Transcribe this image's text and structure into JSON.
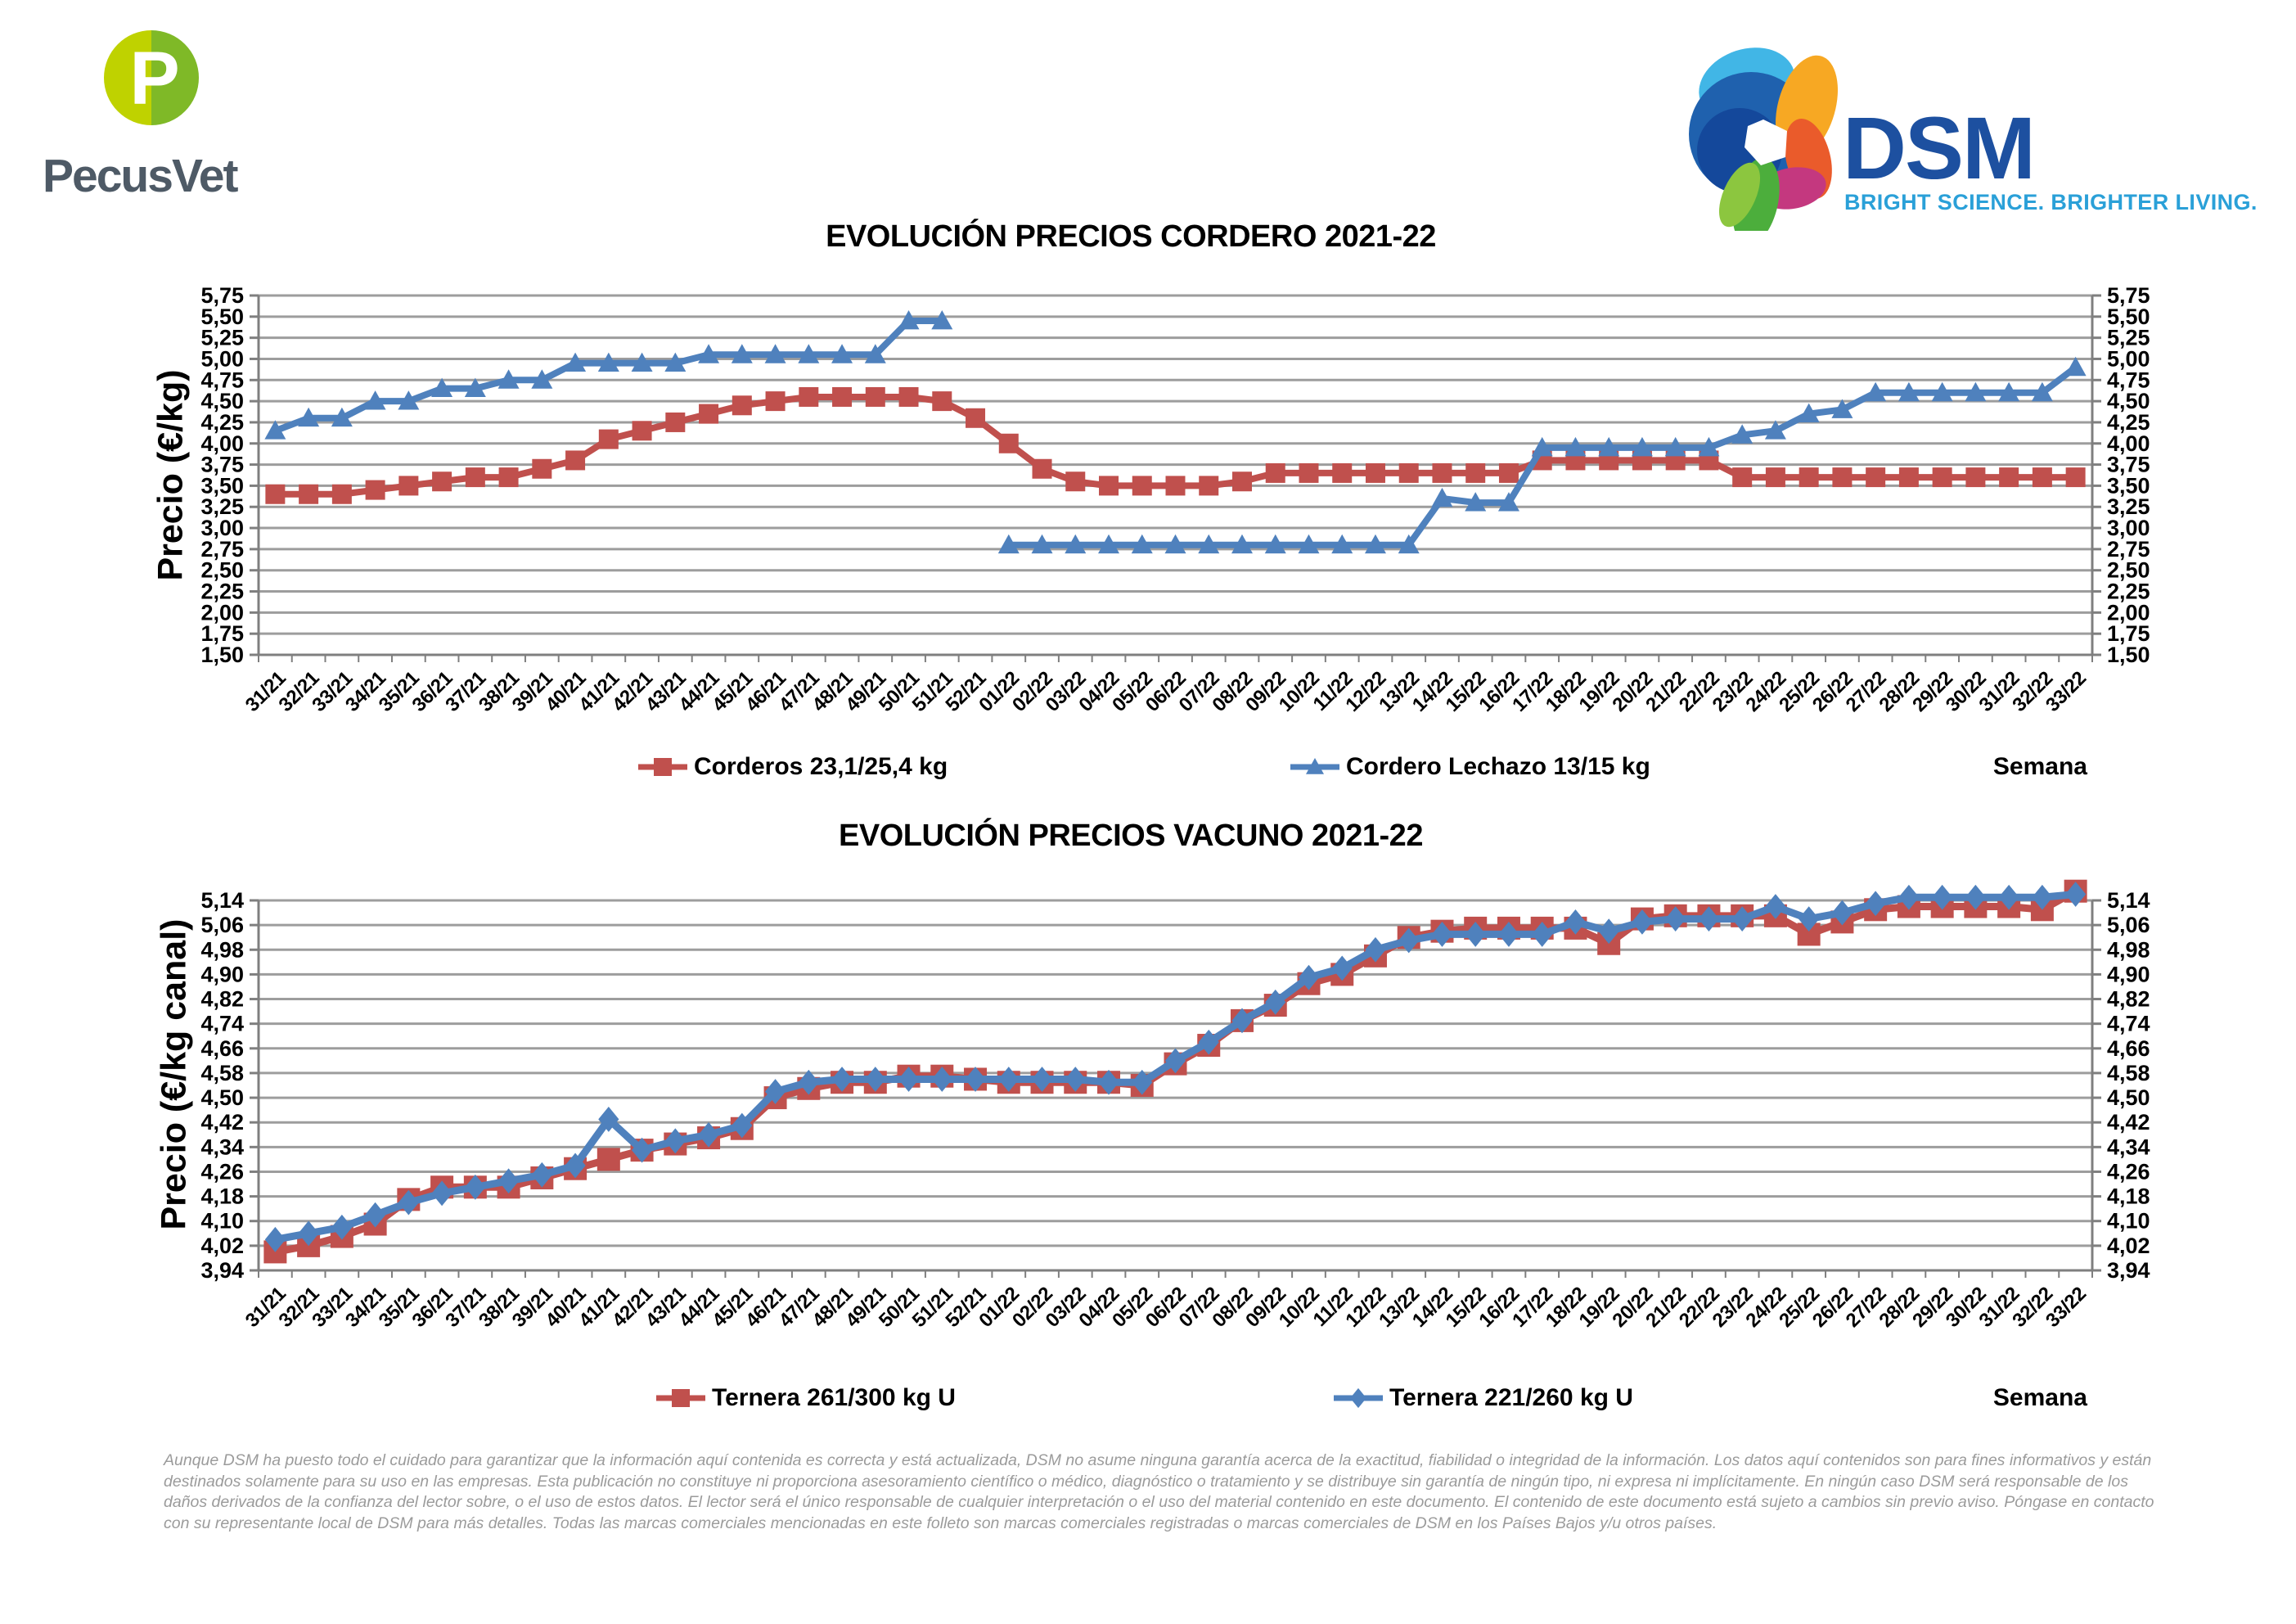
{
  "header": {
    "pecusvet": {
      "wordmark": "PecusVet",
      "monogram": "P"
    },
    "dsm": {
      "wordmark": "DSM",
      "tagline": "BRIGHT SCIENCE. BRIGHTER LIVING."
    }
  },
  "colors": {
    "series_red": "#C0504D",
    "series_blue": "#4F81BD",
    "grid": "#9D9D9D",
    "axis": "#7F7F7F",
    "pecusvet_lime": "#BFD200",
    "pecusvet_green": "#7FB927",
    "pecusvet_text": "#4E5A66",
    "dsm_blue": "#1D50A0",
    "dsm_tagline_blue": "#2AA0D8",
    "footer_text": "#9B9B9B"
  },
  "chart_data": [
    {
      "type": "line",
      "title": "EVOLUCIÓN PRECIOS CORDERO 2021-22",
      "xlabel": "Semana",
      "ylabel": "Precio (€/kg)",
      "ylim": [
        1.5,
        5.75
      ],
      "ytick_step": 0.25,
      "grid": true,
      "legend_position": "bottom",
      "y_ticks": [
        "1,50",
        "1,75",
        "2,00",
        "2,25",
        "2,50",
        "2,75",
        "3,00",
        "3,25",
        "3,50",
        "3,75",
        "4,00",
        "4,25",
        "4,50",
        "4,75",
        "5,00",
        "5,25",
        "5,50",
        "5,75"
      ],
      "x": [
        "31/21",
        "32/21",
        "33/21",
        "34/21",
        "35/21",
        "36/21",
        "37/21",
        "38/21",
        "39/21",
        "40/21",
        "41/21",
        "42/21",
        "43/21",
        "44/21",
        "45/21",
        "46/21",
        "47/21",
        "48/21",
        "49/21",
        "50/21",
        "51/21",
        "52/21",
        "01/22",
        "02/22",
        "03/22",
        "04/22",
        "05/22",
        "06/22",
        "07/22",
        "08/22",
        "09/22",
        "10/22",
        "11/22",
        "12/22",
        "13/22",
        "14/22",
        "15/22",
        "16/22",
        "17/22",
        "18/22",
        "19/22",
        "20/22",
        "21/22",
        "22/22",
        "23/22",
        "24/22",
        "25/22",
        "26/22",
        "27/22",
        "28/22",
        "29/22",
        "30/22",
        "31/22",
        "32/22",
        "33/22"
      ],
      "series": [
        {
          "name": "Corderos 23,1/25,4 kg",
          "color": "#C0504D",
          "marker": "square",
          "values": [
            3.4,
            3.4,
            3.4,
            3.45,
            3.5,
            3.55,
            3.6,
            3.6,
            3.7,
            3.8,
            4.05,
            4.15,
            4.25,
            4.35,
            4.45,
            4.5,
            4.55,
            4.55,
            4.55,
            4.55,
            4.5,
            4.3,
            4.0,
            3.7,
            3.55,
            3.5,
            3.5,
            3.5,
            3.5,
            3.55,
            3.65,
            3.65,
            3.65,
            3.65,
            3.65,
            3.65,
            3.65,
            3.65,
            3.8,
            3.8,
            3.8,
            3.8,
            3.8,
            3.8,
            3.6,
            3.6,
            3.6,
            3.6,
            3.6,
            3.6,
            3.6,
            3.6,
            3.6,
            3.6,
            3.6
          ]
        },
        {
          "name": "Cordero Lechazo 13/15 kg",
          "color": "#4F81BD",
          "marker": "triangle",
          "values": [
            4.15,
            4.3,
            4.3,
            4.5,
            4.5,
            4.65,
            4.65,
            4.75,
            4.75,
            4.95,
            4.95,
            4.95,
            4.95,
            5.05,
            5.05,
            5.05,
            5.05,
            5.05,
            5.05,
            5.45,
            5.45,
            null,
            2.8,
            2.8,
            2.8,
            2.8,
            2.8,
            2.8,
            2.8,
            2.8,
            2.8,
            2.8,
            2.8,
            2.8,
            2.8,
            3.35,
            3.3,
            3.3,
            3.95,
            3.95,
            3.95,
            3.95,
            3.95,
            3.95,
            4.1,
            4.15,
            4.35,
            4.4,
            4.6,
            4.6,
            4.6,
            4.6,
            4.6,
            4.6,
            4.9
          ]
        }
      ]
    },
    {
      "type": "line",
      "title": "EVOLUCIÓN PRECIOS VACUNO 2021-22",
      "xlabel": "Semana",
      "ylabel": "Precio (€/kg canal)",
      "ylim": [
        3.94,
        5.14
      ],
      "ytick_step": 0.08,
      "grid": true,
      "legend_position": "bottom",
      "y_ticks": [
        "3,94",
        "4,02",
        "4,10",
        "4,18",
        "4,26",
        "4,34",
        "4,42",
        "4,50",
        "4,58",
        "4,66",
        "4,74",
        "4,82",
        "4,90",
        "4,98",
        "5,06",
        "5,14"
      ],
      "x": [
        "31/21",
        "32/21",
        "33/21",
        "34/21",
        "35/21",
        "36/21",
        "37/21",
        "38/21",
        "39/21",
        "40/21",
        "41/21",
        "42/21",
        "43/21",
        "44/21",
        "45/21",
        "46/21",
        "47/21",
        "48/21",
        "49/21",
        "50/21",
        "51/21",
        "52/21",
        "01/22",
        "02/22",
        "03/22",
        "04/22",
        "05/22",
        "06/22",
        "07/22",
        "08/22",
        "09/22",
        "10/22",
        "11/22",
        "12/22",
        "13/22",
        "14/22",
        "15/22",
        "16/22",
        "17/22",
        "18/22",
        "19/22",
        "20/22",
        "21/22",
        "22/22",
        "23/22",
        "24/22",
        "25/22",
        "26/22",
        "27/22",
        "28/22",
        "29/22",
        "30/22",
        "31/22",
        "32/22",
        "33/22"
      ],
      "series": [
        {
          "name": "Ternera 261/300 kg U",
          "color": "#C0504D",
          "marker": "square",
          "values": [
            4.0,
            4.02,
            4.05,
            4.09,
            4.17,
            4.21,
            4.21,
            4.21,
            4.24,
            4.27,
            4.3,
            4.33,
            4.35,
            4.37,
            4.4,
            4.5,
            4.53,
            4.55,
            4.55,
            4.57,
            4.57,
            4.56,
            4.55,
            4.55,
            4.55,
            4.55,
            4.54,
            4.61,
            4.67,
            4.75,
            4.8,
            4.87,
            4.9,
            4.96,
            5.02,
            5.04,
            5.05,
            5.05,
            5.05,
            5.05,
            5.0,
            5.08,
            5.09,
            5.09,
            5.09,
            5.09,
            5.03,
            5.07,
            5.11,
            5.12,
            5.12,
            5.12,
            5.12,
            5.11,
            5.17
          ]
        },
        {
          "name": "Ternera 221/260 kg U",
          "color": "#4F81BD",
          "marker": "diamond",
          "values": [
            4.04,
            4.06,
            4.08,
            4.12,
            4.16,
            4.19,
            4.21,
            4.23,
            4.25,
            4.28,
            4.43,
            4.33,
            4.36,
            4.38,
            4.41,
            4.52,
            4.55,
            4.56,
            4.56,
            4.56,
            4.56,
            4.56,
            4.56,
            4.56,
            4.56,
            4.55,
            4.55,
            4.62,
            4.68,
            4.75,
            4.81,
            4.89,
            4.92,
            4.98,
            5.01,
            5.03,
            5.03,
            5.03,
            5.03,
            5.07,
            5.04,
            5.07,
            5.08,
            5.08,
            5.08,
            5.12,
            5.08,
            5.1,
            5.13,
            5.15,
            5.15,
            5.15,
            5.15,
            5.15,
            5.16
          ]
        }
      ]
    }
  ],
  "footer": {
    "lines": [
      "Aunque DSM ha puesto todo el cuidado para garantizar que la información aquí contenida es correcta y está actualizada, DSM no asume ninguna garantía acerca de la exactitud, fiabilidad o integridad de la información. Los datos aquí contenidos son para fines informativos y están",
      "destinados solamente para su uso en las empresas. Esta publicación no constituye ni proporciona asesoramiento científico o médico, diagnóstico o tratamiento y se distribuye sin garantía de ningún tipo, ni expresa ni implícitamente. En ningún caso DSM será responsable de los",
      "daños derivados de la confianza del lector sobre, o el uso de estos datos. El lector será el único responsable de cualquier interpretación o el uso del material contenido en este documento. El contenido de este documento está sujeto a cambios sin previo aviso. Póngase en contacto",
      "con su representante local de DSM para más detalles. Todas las marcas comerciales mencionadas en este folleto son marcas comerciales registradas o marcas comerciales de DSM en los Países Bajos y/u otros países."
    ]
  }
}
